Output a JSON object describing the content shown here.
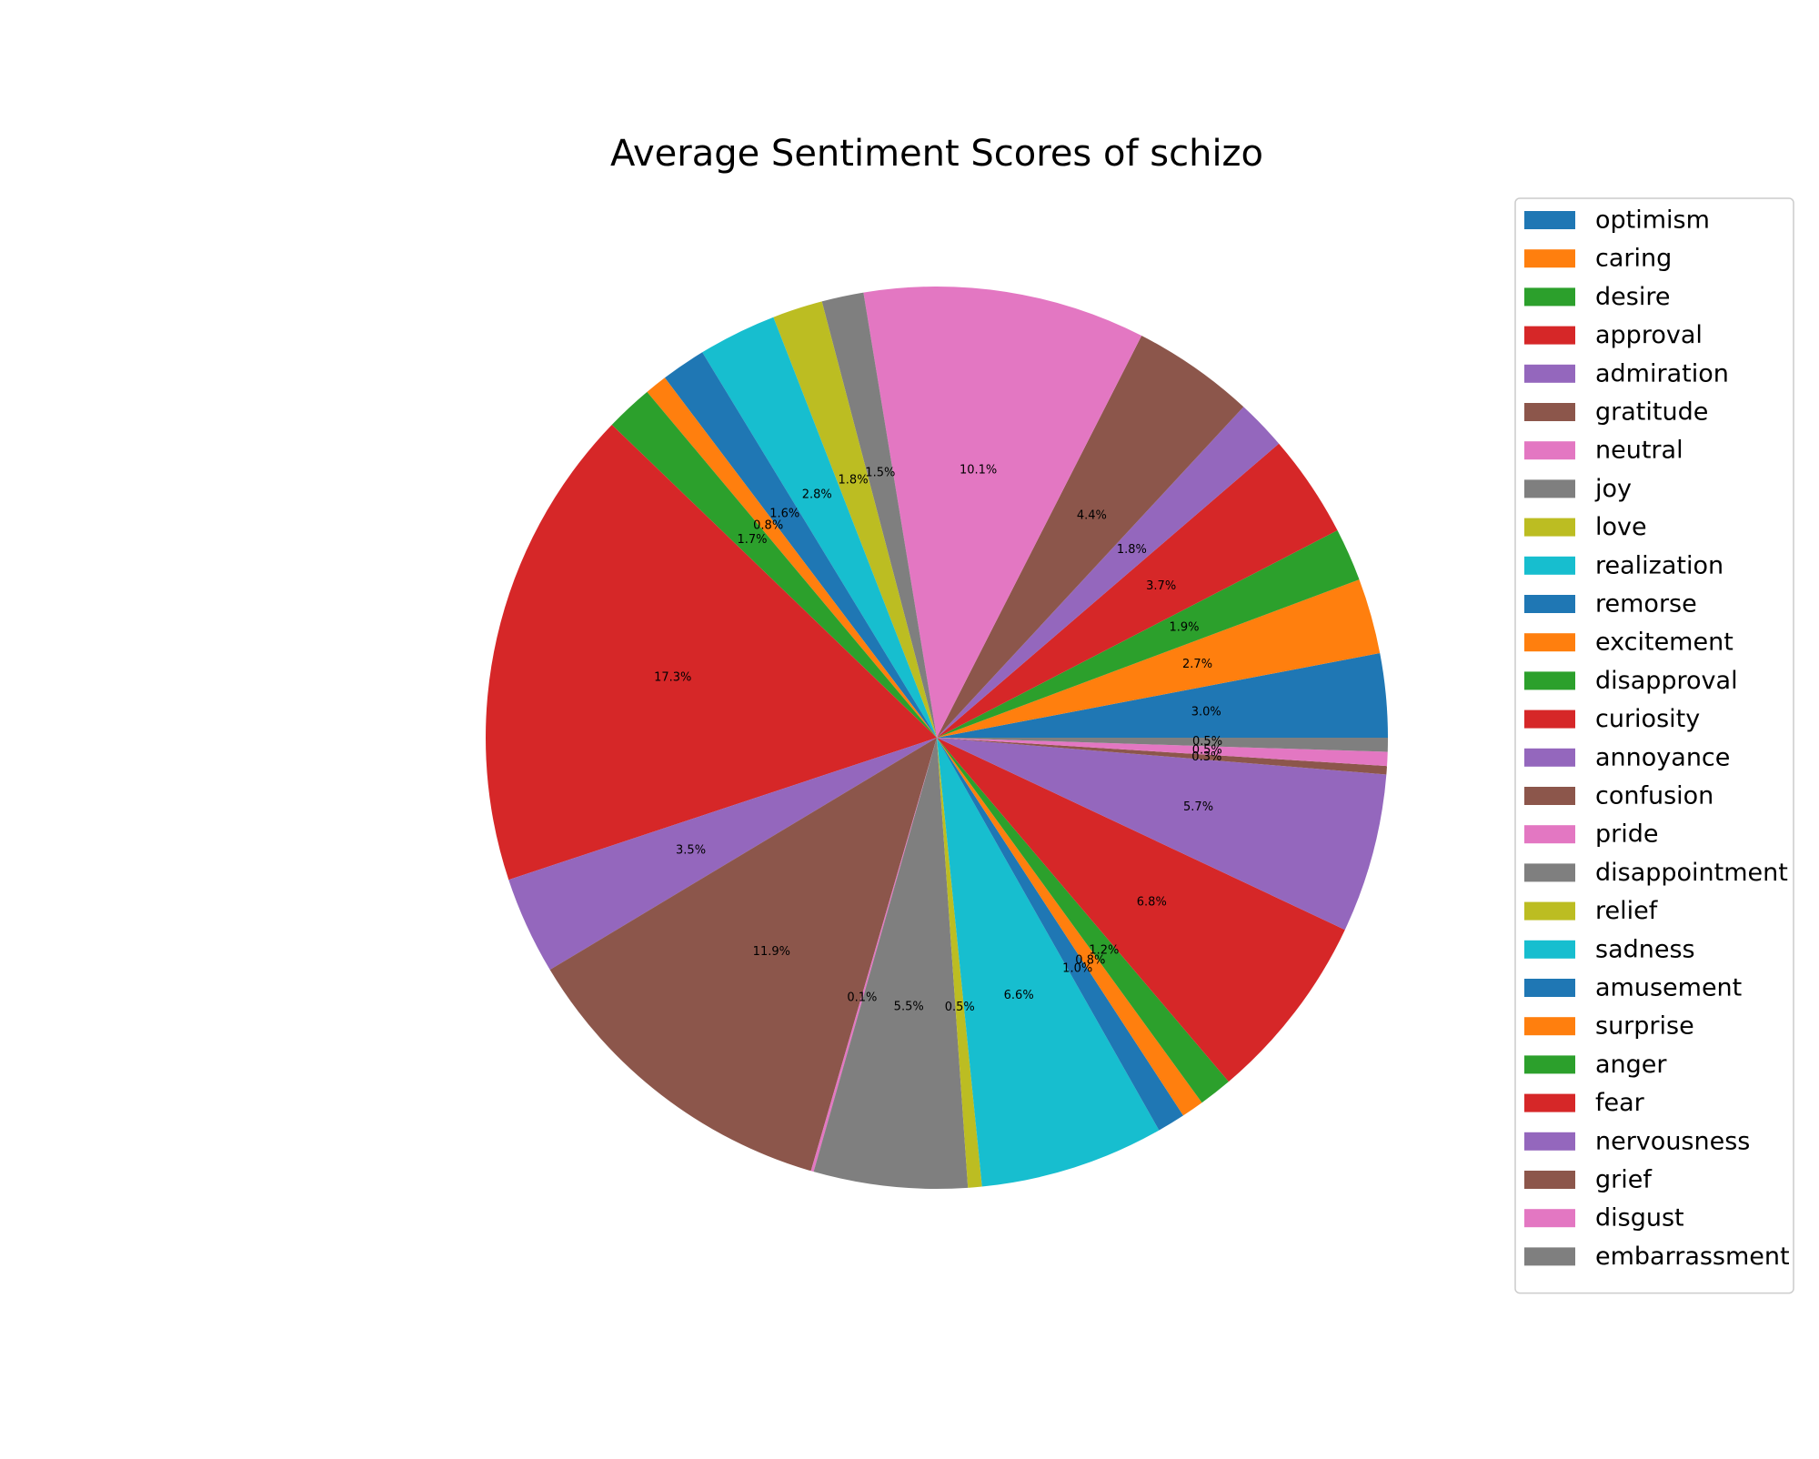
{
  "chart_data": {
    "type": "pie",
    "title": "Average Sentiment Scores of schizo",
    "legend_position": "right",
    "start_angle_deg": 0,
    "direction": "counterclockwise",
    "slices": [
      {
        "label": "optimism",
        "value": 3.0,
        "pct_label": "3.0%",
        "color": "#1f77b4"
      },
      {
        "label": "caring",
        "value": 2.7,
        "pct_label": "2.7%",
        "color": "#ff7f0e"
      },
      {
        "label": "desire",
        "value": 1.9,
        "pct_label": "1.9%",
        "color": "#2ca02c"
      },
      {
        "label": "approval",
        "value": 3.7,
        "pct_label": "3.7%",
        "color": "#d62728"
      },
      {
        "label": "admiration",
        "value": 1.8,
        "pct_label": "1.8%",
        "color": "#9467bd"
      },
      {
        "label": "gratitude",
        "value": 4.4,
        "pct_label": "4.4%",
        "color": "#8c564b"
      },
      {
        "label": "neutral",
        "value": 10.1,
        "pct_label": "10.1%",
        "color": "#e377c2"
      },
      {
        "label": "joy",
        "value": 1.5,
        "pct_label": "1.5%",
        "color": "#7f7f7f"
      },
      {
        "label": "love",
        "value": 1.8,
        "pct_label": "1.8%",
        "color": "#bcbd22"
      },
      {
        "label": "realization",
        "value": 2.8,
        "pct_label": "2.8%",
        "color": "#17becf"
      },
      {
        "label": "remorse",
        "value": 1.6,
        "pct_label": "1.6%",
        "color": "#1f77b4"
      },
      {
        "label": "excitement",
        "value": 0.8,
        "pct_label": "0.8%",
        "color": "#ff7f0e"
      },
      {
        "label": "disapproval",
        "value": 1.7,
        "pct_label": "1.7%",
        "color": "#2ca02c"
      },
      {
        "label": "curiosity",
        "value": 17.3,
        "pct_label": "17.3%",
        "color": "#d62728"
      },
      {
        "label": "annoyance",
        "value": 3.5,
        "pct_label": "3.5%",
        "color": "#9467bd"
      },
      {
        "label": "confusion",
        "value": 11.9,
        "pct_label": "11.9%",
        "color": "#8c564b"
      },
      {
        "label": "pride",
        "value": 0.1,
        "pct_label": "0.1%",
        "color": "#e377c2"
      },
      {
        "label": "disappointment",
        "value": 5.5,
        "pct_label": "5.5%",
        "color": "#7f7f7f"
      },
      {
        "label": "relief",
        "value": 0.5,
        "pct_label": "0.5%",
        "color": "#bcbd22"
      },
      {
        "label": "sadness",
        "value": 6.6,
        "pct_label": "6.6%",
        "color": "#17becf"
      },
      {
        "label": "amusement",
        "value": 1.0,
        "pct_label": "1.0%",
        "color": "#1f77b4"
      },
      {
        "label": "surprise",
        "value": 0.8,
        "pct_label": "0.8%",
        "color": "#ff7f0e"
      },
      {
        "label": "anger",
        "value": 1.2,
        "pct_label": "1.2%",
        "color": "#2ca02c"
      },
      {
        "label": "fear",
        "value": 6.8,
        "pct_label": "6.8%",
        "color": "#d62728"
      },
      {
        "label": "nervousness",
        "value": 5.7,
        "pct_label": "5.7%",
        "color": "#9467bd"
      },
      {
        "label": "grief",
        "value": 0.3,
        "pct_label": "0.3%",
        "color": "#8c564b"
      },
      {
        "label": "disgust",
        "value": 0.5,
        "pct_label": "0.5%",
        "color": "#e377c2"
      },
      {
        "label": "embarrassment",
        "value": 0.5,
        "pct_label": "0.5%",
        "color": "#7f7f7f"
      }
    ]
  }
}
